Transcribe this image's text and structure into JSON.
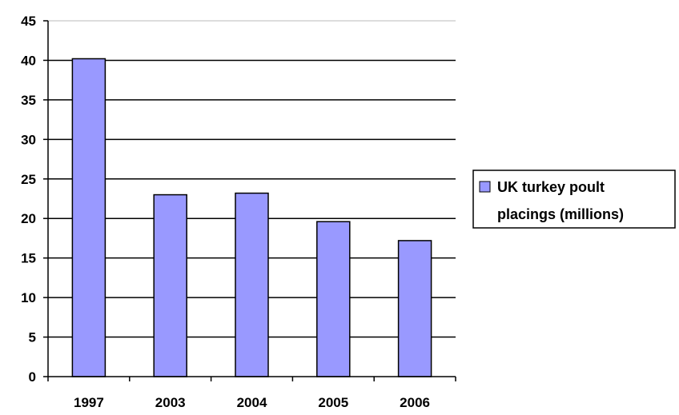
{
  "chart_data": {
    "type": "bar",
    "categories": [
      "1997",
      "2003",
      "2004",
      "2005",
      "2006"
    ],
    "series": [
      {
        "name": "UK turkey poult placings (millions)",
        "values": [
          40.2,
          23.0,
          23.2,
          19.6,
          17.2
        ]
      }
    ],
    "ylim": [
      0,
      45
    ],
    "yticks": [
      0,
      5,
      10,
      15,
      20,
      25,
      30,
      35,
      40,
      45
    ],
    "grid": true,
    "legend_position": "right",
    "title": "",
    "xlabel": "",
    "ylabel": "",
    "colors": {
      "bar": "#9999FF",
      "outline": "#000000",
      "grid": "#000000"
    }
  },
  "legend": {
    "line1": "UK turkey poult",
    "line2": "placings (millions)"
  }
}
